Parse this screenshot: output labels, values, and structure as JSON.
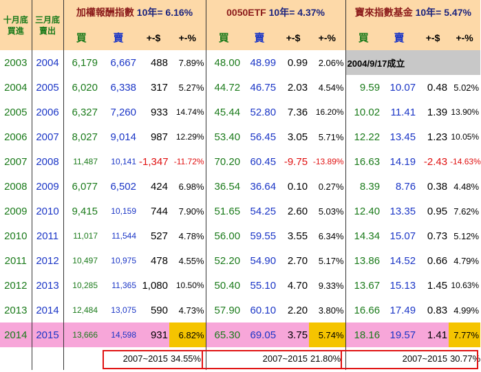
{
  "header": {
    "buy_month": "十月底",
    "buy_label": "買進",
    "sell_month": "三月底",
    "sell_label": "賣出",
    "groups": [
      {
        "name": "加權報酬指數",
        "tenyr": "10年= 6.16%"
      },
      {
        "name": "0050ETF",
        "tenyr": "10年= 4.37%"
      },
      {
        "name": "寶來指數基金",
        "tenyr": "10年= 5.47%"
      }
    ],
    "col_buy": "買",
    "col_sell": "賣",
    "col_diff": "+-$",
    "col_pct": "+-%"
  },
  "rows": [
    {
      "y1": "2003",
      "y2": "2004",
      "a": [
        "6,179",
        "6,667",
        "488",
        "7.89%"
      ],
      "b": [
        "48.00",
        "48.99",
        "0.99",
        "2.06%"
      ],
      "c_note": "2004/9/17成立"
    },
    {
      "y1": "2004",
      "y2": "2005",
      "a": [
        "6,020",
        "6,338",
        "317",
        "5.27%"
      ],
      "b": [
        "44.72",
        "46.75",
        "2.03",
        "4.54%"
      ],
      "c": [
        "9.59",
        "10.07",
        "0.48",
        "5.02%"
      ]
    },
    {
      "y1": "2005",
      "y2": "2006",
      "a": [
        "6,327",
        "7,260",
        "933",
        "14.74%"
      ],
      "b": [
        "45.44",
        "52.80",
        "7.36",
        "16.20%"
      ],
      "c": [
        "10.02",
        "11.41",
        "1.39",
        "13.90%"
      ]
    },
    {
      "y1": "2006",
      "y2": "2007",
      "a": [
        "8,027",
        "9,014",
        "987",
        "12.29%"
      ],
      "b": [
        "53.40",
        "56.45",
        "3.05",
        "5.71%"
      ],
      "c": [
        "12.22",
        "13.45",
        "1.23",
        "10.05%"
      ]
    },
    {
      "y1": "2007",
      "y2": "2008",
      "a": [
        "11,487",
        "10,141",
        "-1,347",
        "-11.72%"
      ],
      "b": [
        "70.20",
        "60.45",
        "-9.75",
        "-13.89%"
      ],
      "c": [
        "16.63",
        "14.19",
        "-2.43",
        "-14.63%"
      ],
      "neg": true
    },
    {
      "y1": "2008",
      "y2": "2009",
      "a": [
        "6,077",
        "6,502",
        "424",
        "6.98%"
      ],
      "b": [
        "36.54",
        "36.64",
        "0.10",
        "0.27%"
      ],
      "c": [
        "8.39",
        "8.76",
        "0.38",
        "4.48%"
      ]
    },
    {
      "y1": "2009",
      "y2": "2010",
      "a": [
        "9,415",
        "10,159",
        "744",
        "7.90%"
      ],
      "b": [
        "51.65",
        "54.25",
        "2.60",
        "5.03%"
      ],
      "c": [
        "12.40",
        "13.35",
        "0.95",
        "7.62%"
      ]
    },
    {
      "y1": "2010",
      "y2": "2011",
      "a": [
        "11,017",
        "11,544",
        "527",
        "4.78%"
      ],
      "b": [
        "56.00",
        "59.55",
        "3.55",
        "6.34%"
      ],
      "c": [
        "14.34",
        "15.07",
        "0.73",
        "5.12%"
      ]
    },
    {
      "y1": "2011",
      "y2": "2012",
      "a": [
        "10,497",
        "10,975",
        "478",
        "4.55%"
      ],
      "b": [
        "52.20",
        "54.90",
        "2.70",
        "5.17%"
      ],
      "c": [
        "13.86",
        "14.52",
        "0.66",
        "4.79%"
      ]
    },
    {
      "y1": "2012",
      "y2": "2013",
      "a": [
        "10,285",
        "11,365",
        "1,080",
        "10.50%"
      ],
      "b": [
        "50.40",
        "55.10",
        "4.70",
        "9.33%"
      ],
      "c": [
        "13.67",
        "15.13",
        "1.45",
        "10.63%"
      ]
    },
    {
      "y1": "2013",
      "y2": "2014",
      "a": [
        "12,484",
        "13,075",
        "590",
        "4.73%"
      ],
      "b": [
        "57.90",
        "60.10",
        "2.20",
        "3.80%"
      ],
      "c": [
        "16.66",
        "17.49",
        "0.83",
        "4.99%"
      ]
    },
    {
      "y1": "2014",
      "y2": "2015",
      "a": [
        "13,666",
        "14,598",
        "931",
        "6.82%"
      ],
      "b": [
        "65.30",
        "69.05",
        "3.75",
        "5.74%"
      ],
      "c": [
        "18.16",
        "19.57",
        "1.41",
        "7.77%"
      ],
      "highlight": true
    }
  ],
  "totals": [
    {
      "label": "2007~2015",
      "value": "34.55%"
    },
    {
      "label": "2007~2015",
      "value": "21.80%"
    },
    {
      "label": "2007~2015",
      "value": "30.77%"
    }
  ],
  "colors": {
    "header_bg": "#fdd9a8",
    "highlight_row": "#f7a6d9",
    "highlight_cell": "#f5c400",
    "note_bg": "#c8c8c8",
    "negative": "#e01010",
    "buy": "#1a7a1a",
    "sell": "#1a35c6"
  }
}
